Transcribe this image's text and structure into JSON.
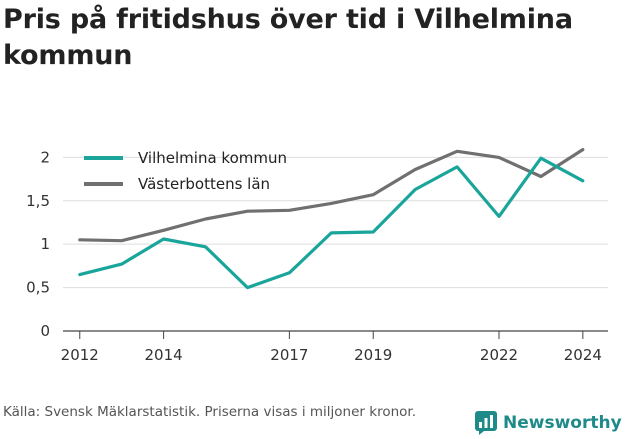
{
  "title": "Pris på fritidshus över tid i Vilhelmina kommun",
  "source_note": "Källa: Svensk Mäklarstatistik. Priserna visas i miljoner kronor.",
  "brand": "Newsworthy",
  "chart_data": {
    "type": "line",
    "title": "Pris på fritidshus över tid i Vilhelmina kommun",
    "xlabel": "",
    "ylabel": "",
    "x": [
      2012,
      2013,
      2014,
      2015,
      2016,
      2017,
      2018,
      2019,
      2020,
      2021,
      2022,
      2023,
      2024
    ],
    "x_ticks": [
      "2012",
      "2014",
      "2017",
      "2019",
      "2022",
      "2024"
    ],
    "x_tick_values": [
      2012,
      2014,
      2017,
      2019,
      2022,
      2024
    ],
    "y_ticks": [
      "0",
      "0,5",
      "1",
      "1,5",
      "2"
    ],
    "y_tick_values": [
      0,
      0.5,
      1,
      1.5,
      2
    ],
    "xlim": [
      2011.6,
      2024.6
    ],
    "ylim": [
      0,
      2.2
    ],
    "grid": "horizontal",
    "legend_position": "top-left",
    "series": [
      {
        "name": "Vilhelmina kommun",
        "color": "#1aa59b",
        "values": [
          0.65,
          0.77,
          1.06,
          0.97,
          0.5,
          0.67,
          1.13,
          1.14,
          1.63,
          1.89,
          1.32,
          1.99,
          1.73
        ]
      },
      {
        "name": "Västerbottens län",
        "color": "#707070",
        "values": [
          1.05,
          1.04,
          1.16,
          1.29,
          1.38,
          1.39,
          1.47,
          1.57,
          1.86,
          2.07,
          2.0,
          1.78,
          2.09
        ]
      }
    ]
  }
}
